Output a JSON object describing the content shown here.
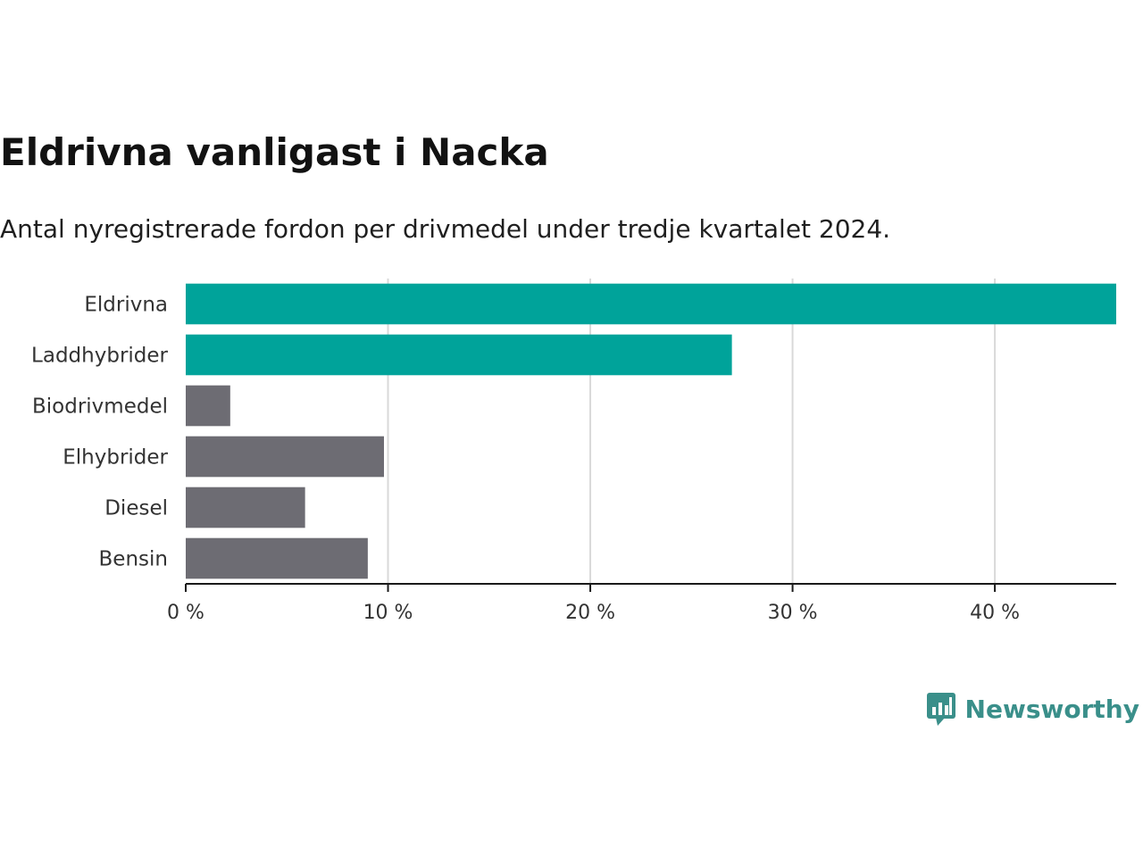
{
  "header": {
    "title": "Eldrivna vanligast i Nacka",
    "subtitle": "Antal nyregistrerade fordon per drivmedel under tredje kvartalet 2024."
  },
  "chart_data": {
    "type": "bar",
    "orientation": "horizontal",
    "title": "Eldrivna vanligast i Nacka",
    "subtitle": "Antal nyregistrerade fordon per drivmedel under tredje kvartalet 2024.",
    "categories": [
      "Eldrivna",
      "Laddhybrider",
      "Biodrivmedel",
      "Elhybrider",
      "Diesel",
      "Bensin"
    ],
    "values": [
      46,
      27,
      2.2,
      9.8,
      5.9,
      9
    ],
    "unit": "%",
    "xlim": [
      0,
      46
    ],
    "xticks": [
      0,
      10,
      20,
      30,
      40
    ],
    "xtick_labels": [
      "0 %",
      "10 %",
      "20 %",
      "30 %",
      "40 %"
    ],
    "grid": true,
    "xlabel": "",
    "ylabel": "",
    "colors": [
      "#00a39a",
      "#00a39a",
      "#6d6c73",
      "#6d6c73",
      "#6d6c73",
      "#6d6c73"
    ]
  },
  "branding": {
    "name": "Newsworthy",
    "icon": "newsworthy-logo-icon",
    "color": "#3a8f8a"
  }
}
